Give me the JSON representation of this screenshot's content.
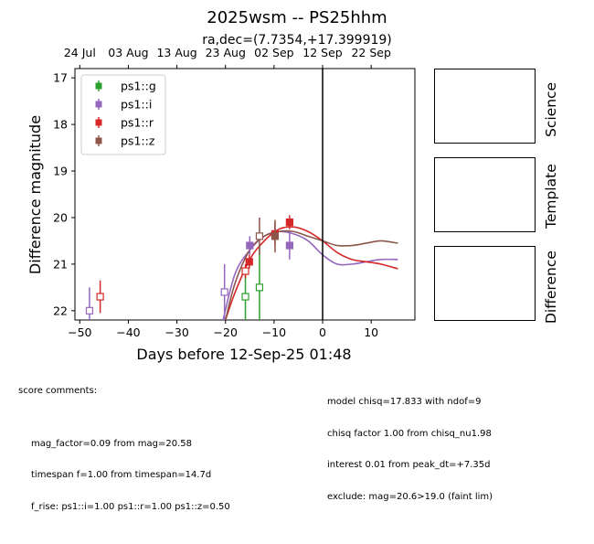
{
  "title": "2025wsm -- PS25hhm",
  "subtitle": "ra,dec=(7.7354,+17.399919)",
  "chart_data": {
    "type": "scatter",
    "xlabel": "Days before 12-Sep-25 01:48",
    "ylabel": "Difference magnitude",
    "xlim": [
      -51,
      19
    ],
    "ylim": [
      22.2,
      16.8
    ],
    "y_inverted": true,
    "x_ticks": [
      -50,
      -40,
      -30,
      -20,
      -10,
      0,
      10
    ],
    "x_tick_labels": [
      "−50",
      "−40",
      "−30",
      "−20",
      "−10",
      "0",
      "10"
    ],
    "y_ticks": [
      17,
      18,
      19,
      20,
      21,
      22
    ],
    "y_tick_labels": [
      "17",
      "18",
      "19",
      "20",
      "21",
      "22"
    ],
    "top_axis_ticks": [
      -50,
      -40,
      -30,
      -20,
      -10,
      0,
      10
    ],
    "top_axis_labels": [
      "24 Jul",
      "03 Aug",
      "13 Aug",
      "23 Aug",
      "02 Sep",
      "12 Sep",
      "22 Sep"
    ],
    "vertical_line_x": 0,
    "legend_position": "top-left",
    "series": [
      {
        "name": "ps1::g",
        "color": "#2ca02c",
        "points": [
          {
            "x": -15.9,
            "y": 21.7,
            "err": 0.5,
            "filled": false
          },
          {
            "x": -13.0,
            "y": 21.5,
            "err": 0.9,
            "filled": false
          }
        ],
        "model": []
      },
      {
        "name": "ps1::i",
        "color": "#9467bd",
        "points": [
          {
            "x": -48.0,
            "y": 22.0,
            "err": 0.5,
            "filled": false
          },
          {
            "x": -20.2,
            "y": 21.6,
            "err": 0.6,
            "filled": false
          },
          {
            "x": -15.0,
            "y": 20.6,
            "err": 0.2,
            "filled": true
          },
          {
            "x": -6.8,
            "y": 20.6,
            "err": 0.3,
            "filled": true
          }
        ],
        "model": [
          [
            -20.5,
            22.2
          ],
          [
            -18,
            21.2
          ],
          [
            -15,
            20.7
          ],
          [
            -12,
            20.4
          ],
          [
            -9,
            20.3
          ],
          [
            -6,
            20.35
          ],
          [
            -3,
            20.5
          ],
          [
            0,
            20.8
          ],
          [
            3,
            21.0
          ],
          [
            6,
            21.0
          ],
          [
            9,
            20.95
          ],
          [
            12,
            20.9
          ],
          [
            15.5,
            20.9
          ]
        ]
      },
      {
        "name": "ps1::r",
        "color": "#d62728",
        "points": [
          {
            "x": -45.8,
            "y": 21.7,
            "err": 0.35,
            "filled": false
          },
          {
            "x": -15.9,
            "y": 21.15,
            "err": 0.15,
            "filled": false
          },
          {
            "x": -15.1,
            "y": 20.95,
            "err": 0.15,
            "filled": true
          },
          {
            "x": -9.8,
            "y": 20.35,
            "err": 0.25,
            "filled": true
          },
          {
            "x": -6.8,
            "y": 20.1,
            "err": 0.15,
            "filled": true
          }
        ],
        "model": [
          [
            -20,
            22.2
          ],
          [
            -18,
            21.6
          ],
          [
            -15,
            20.9
          ],
          [
            -12,
            20.5
          ],
          [
            -9,
            20.25
          ],
          [
            -6,
            20.2
          ],
          [
            -3,
            20.3
          ],
          [
            0,
            20.5
          ],
          [
            3,
            20.75
          ],
          [
            6,
            20.9
          ],
          [
            9,
            20.95
          ],
          [
            12,
            21.0
          ],
          [
            15.5,
            21.1
          ]
        ]
      },
      {
        "name": "ps1::z",
        "color": "#8c564b",
        "points": [
          {
            "x": -13.0,
            "y": 20.4,
            "err": 0.4,
            "filled": false
          },
          {
            "x": -9.8,
            "y": 20.4,
            "err": 0.35,
            "filled": true
          }
        ],
        "model": [
          [
            -20,
            22.2
          ],
          [
            -18,
            21.4
          ],
          [
            -15,
            20.7
          ],
          [
            -12,
            20.4
          ],
          [
            -9,
            20.3
          ],
          [
            -6,
            20.3
          ],
          [
            -3,
            20.4
          ],
          [
            0,
            20.5
          ],
          [
            3,
            20.6
          ],
          [
            6,
            20.6
          ],
          [
            9,
            20.55
          ],
          [
            12,
            20.5
          ],
          [
            15.5,
            20.55
          ]
        ]
      }
    ]
  },
  "panels": [
    "Science",
    "Template",
    "Difference"
  ],
  "score_comments": {
    "heading": "score comments:",
    "lines": [
      "mag_factor=0.09 from mag=20.58",
      "timespan f=1.00 from timespan=14.7d",
      "f_rise: ps1::i=1.00 ps1::r=1.00 ps1::z=0.50"
    ]
  },
  "model_comments": [
    "model chisq=17.833 with ndof=9",
    "chisq factor 1.00 from chisq_nu1.98",
    "interest 0.01 from peak_dt=+7.35d",
    "exclude: mag=20.6>19.0 (faint lim)"
  ]
}
